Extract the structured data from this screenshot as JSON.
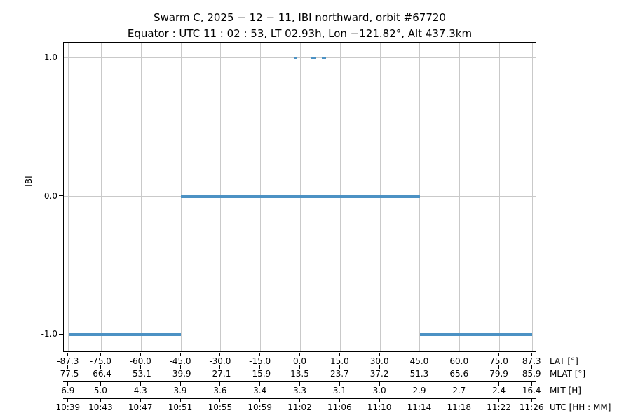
{
  "colors": {
    "line": "#4C92C4",
    "grid": "#C9C9C9",
    "frame": "#000000",
    "text": "#000000"
  },
  "chart_data": {
    "type": "line",
    "title": "Swarm C, 2025 − 12 − 11, IBI northward, orbit #67720",
    "subtitle": "Equator : UTC 11 : 02 : 53, LT 02.93h, Lon −121.82°, Alt 437.3km",
    "ylabel": "IBI",
    "xlim": [
      -89.1,
      89.1
    ],
    "ylim": [
      -1.13,
      1.11
    ],
    "grid": true,
    "legend": "none",
    "yticks": {
      "values": [
        1.0,
        0.0,
        -1.0
      ],
      "labels": [
        "1.0",
        "0.0",
        "-1.0"
      ]
    },
    "xtick_positions_lat": [
      -87.3,
      -75.0,
      -60.0,
      -45.0,
      -30.0,
      -15.0,
      0.0,
      15.0,
      30.0,
      45.0,
      60.0,
      75.0,
      87.3
    ],
    "x_axes": [
      {
        "label": "LAT [°]",
        "tick_labels": [
          "-87.3",
          "-75.0",
          "-60.0",
          "-45.0",
          "-30.0",
          "-15.0",
          "0.0",
          "15.0",
          "30.0",
          "45.0",
          "60.0",
          "75.0",
          "87.3"
        ]
      },
      {
        "label": "MLAT [°]",
        "tick_labels": [
          "-77.5",
          "-66.4",
          "-53.1",
          "-39.9",
          "-27.1",
          "-15.9",
          "13.5",
          "23.7",
          "37.2",
          "51.3",
          "65.6",
          "79.9",
          "85.9"
        ]
      },
      {
        "label": "MLT [H]",
        "tick_labels": [
          "6.9",
          "5.0",
          "4.3",
          "3.9",
          "3.6",
          "3.4",
          "3.3",
          "3.1",
          "3.0",
          "2.9",
          "2.7",
          "2.4",
          "16.4"
        ]
      },
      {
        "label": "UTC [HH : MM]",
        "tick_labels": [
          "10:39",
          "10:43",
          "10:47",
          "10:51",
          "10:55",
          "10:59",
          "11:02",
          "11:06",
          "11:10",
          "11:14",
          "11:18",
          "11:22",
          "11:26"
        ]
      }
    ],
    "segments": [
      {
        "y": -1.0,
        "x0": -87.3,
        "x1": -45.0
      },
      {
        "y": 0.0,
        "x0": -45.0,
        "x1": 45.0
      },
      {
        "y": -1.0,
        "x0": 45.0,
        "x1": 87.3
      },
      {
        "y": 1.0,
        "x0": -2.2,
        "x1": -1.1
      },
      {
        "y": 1.0,
        "x0": 4.1,
        "x1": 5.9
      },
      {
        "y": 1.0,
        "x0": 8.0,
        "x1": 9.7
      }
    ]
  }
}
